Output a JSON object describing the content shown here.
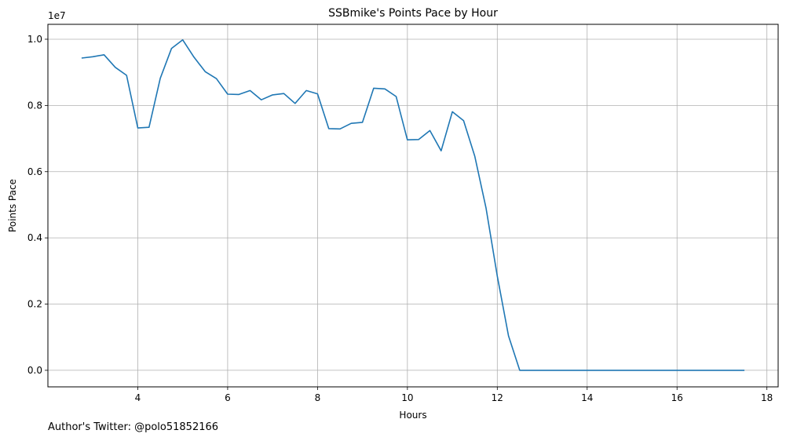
{
  "chart_data": {
    "type": "line",
    "title": "SSBmike's Points Pace by Hour",
    "xlabel": "Hours",
    "ylabel": "Points Pace",
    "y_scale_label": "1e7",
    "xlim": [
      2.0,
      18.25
    ],
    "ylim": [
      -0.5,
      10.45
    ],
    "x_ticks": [
      4,
      6,
      8,
      10,
      12,
      14,
      16,
      18
    ],
    "x_tick_labels": [
      "4",
      "6",
      "8",
      "10",
      "12",
      "14",
      "16",
      "18"
    ],
    "y_ticks": [
      0,
      2,
      4,
      6,
      8,
      10
    ],
    "y_tick_labels": [
      "0.0",
      "0.2",
      "0.4",
      "0.6",
      "0.8",
      "1.0"
    ],
    "grid": true,
    "line_color": "#1f77b4",
    "grid_color": "#b0b0b0",
    "series": [
      {
        "x": [
          2.75,
          3.0,
          3.25,
          3.5,
          3.75,
          4.0,
          4.25,
          4.5,
          4.75,
          5.0,
          5.25,
          5.5,
          5.75,
          6.0,
          6.25,
          6.5,
          6.75,
          7.0,
          7.25,
          7.5,
          7.75,
          8.0,
          8.25,
          8.5,
          8.75,
          9.0,
          9.25,
          9.5,
          9.75,
          10.0,
          10.25,
          10.5,
          10.75,
          11.0,
          11.25,
          11.5,
          11.75,
          12.0,
          12.25,
          12.5,
          12.75,
          13.0,
          13.25,
          13.5,
          13.75,
          14.0,
          14.25,
          14.5,
          14.75,
          15.0,
          15.25,
          15.5,
          15.75,
          16.0,
          16.25,
          16.5,
          16.75,
          17.0,
          17.25,
          17.5
        ],
        "y": [
          9.43,
          9.47,
          9.53,
          9.15,
          8.91,
          7.32,
          7.34,
          8.82,
          9.72,
          9.98,
          9.46,
          9.02,
          8.81,
          8.34,
          8.33,
          8.45,
          8.17,
          8.32,
          8.36,
          8.06,
          8.45,
          8.35,
          7.3,
          7.29,
          7.46,
          7.49,
          8.52,
          8.5,
          8.27,
          6.96,
          6.97,
          7.24,
          6.63,
          7.81,
          7.54,
          6.46,
          4.9,
          2.85,
          1.04,
          0.0,
          0.0,
          0.0,
          0.0,
          0.0,
          0.0,
          0.0,
          0.0,
          0.0,
          0.0,
          0.0,
          0.0,
          0.0,
          0.0,
          0.0,
          0.0,
          0.0,
          0.0,
          0.0,
          0.0,
          0.0
        ]
      }
    ]
  },
  "footer": {
    "text": "Author's Twitter: @polo51852166"
  }
}
